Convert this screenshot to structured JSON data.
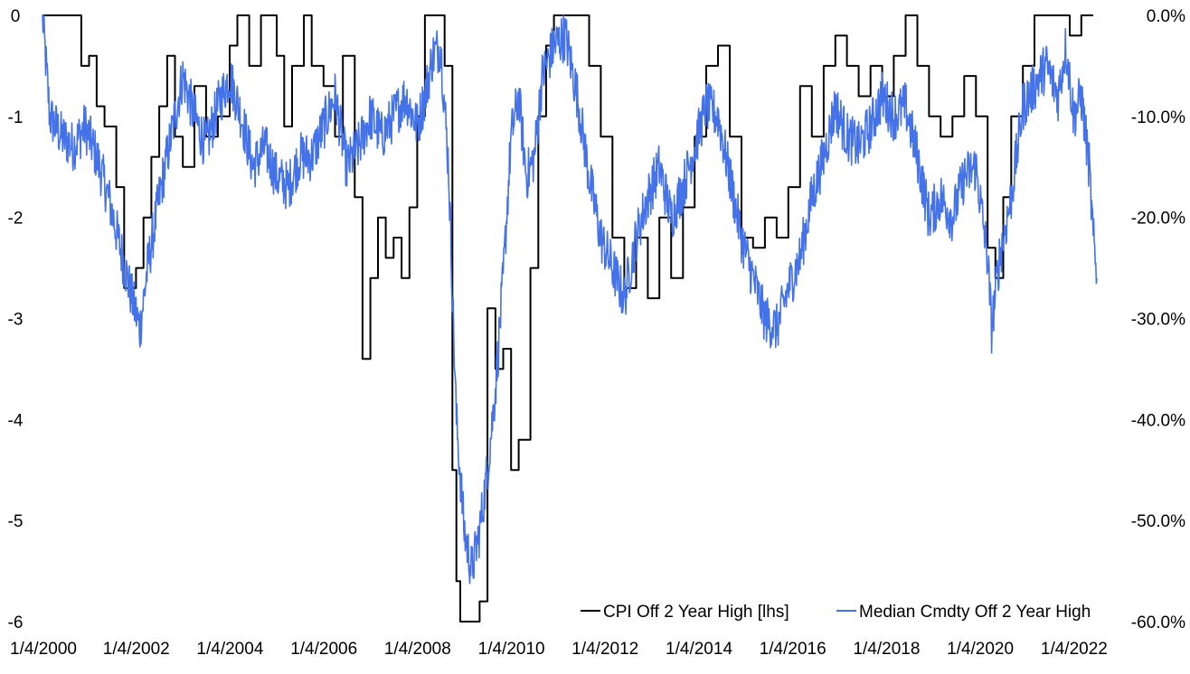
{
  "chart_data": {
    "type": "line",
    "title": "",
    "xlabel": "",
    "ylabel": "",
    "x_start": "2000-01-04",
    "x_end": "2022-06-30",
    "x_tick_labels": [
      "1/4/2000",
      "1/4/2002",
      "1/4/2004",
      "1/4/2006",
      "1/4/2008",
      "1/4/2010",
      "1/4/2012",
      "1/4/2014",
      "1/4/2016",
      "1/4/2018",
      "1/4/2020",
      "1/4/2022"
    ],
    "x_tick_dates": [
      "2000-01-04",
      "2002-01-04",
      "2004-01-04",
      "2006-01-04",
      "2008-01-04",
      "2010-01-04",
      "2012-01-04",
      "2014-01-04",
      "2016-01-04",
      "2018-01-04",
      "2020-01-04",
      "2022-01-04"
    ],
    "y_left": {
      "ylim": [
        -6,
        0
      ],
      "ticks": [
        0,
        -1,
        -2,
        -3,
        -4,
        -5,
        -6
      ],
      "tick_labels": [
        "0",
        "-1",
        "-2",
        "-3",
        "-4",
        "-5",
        "-6"
      ]
    },
    "y_right": {
      "ylim": [
        -60,
        0
      ],
      "ticks": [
        0,
        -10,
        -20,
        -30,
        -40,
        -50,
        -60
      ],
      "tick_labels": [
        "0.0%",
        "-10.0%",
        "-20.0%",
        "-30.0%",
        "-40.0%",
        "-50.0%",
        "-60.0%"
      ]
    },
    "grid": false,
    "legend": {
      "position": "bottom-right"
    },
    "series": [
      {
        "name": "CPI Off 2 Year High [lhs]",
        "axis": "left",
        "color": "#000000",
        "step": true,
        "points": [
          [
            "2000-01-04",
            0
          ],
          [
            "2000-10-01",
            0
          ],
          [
            "2000-11-01",
            -0.5
          ],
          [
            "2001-01-01",
            -0.4
          ],
          [
            "2001-03-01",
            -0.9
          ],
          [
            "2001-05-01",
            -1.1
          ],
          [
            "2001-08-01",
            -1.7
          ],
          [
            "2001-10-01",
            -2.7
          ],
          [
            "2002-01-01",
            -2.5
          ],
          [
            "2002-03-01",
            -2.0
          ],
          [
            "2002-05-01",
            -1.4
          ],
          [
            "2002-07-01",
            -0.9
          ],
          [
            "2002-09-01",
            -0.4
          ],
          [
            "2002-11-01",
            -1.2
          ],
          [
            "2003-01-01",
            -1.5
          ],
          [
            "2003-04-01",
            -0.7
          ],
          [
            "2003-07-01",
            -1.2
          ],
          [
            "2003-10-01",
            -1.0
          ],
          [
            "2004-01-01",
            -0.3
          ],
          [
            "2004-03-01",
            0
          ],
          [
            "2004-06-01",
            -0.5
          ],
          [
            "2004-09-01",
            0
          ],
          [
            "2005-01-01",
            -0.4
          ],
          [
            "2005-03-01",
            -1.1
          ],
          [
            "2005-05-01",
            -0.5
          ],
          [
            "2005-08-01",
            0
          ],
          [
            "2005-10-01",
            -0.5
          ],
          [
            "2006-01-01",
            -0.7
          ],
          [
            "2006-04-01",
            -1.2
          ],
          [
            "2006-06-01",
            -0.4
          ],
          [
            "2006-09-01",
            -1.8
          ],
          [
            "2006-11-01",
            -3.4
          ],
          [
            "2007-01-01",
            -2.6
          ],
          [
            "2007-03-01",
            -2.0
          ],
          [
            "2007-05-01",
            -2.4
          ],
          [
            "2007-07-01",
            -2.2
          ],
          [
            "2007-09-01",
            -2.6
          ],
          [
            "2007-11-01",
            -1.9
          ],
          [
            "2008-01-01",
            -1.0
          ],
          [
            "2008-03-01",
            0
          ],
          [
            "2008-06-01",
            0
          ],
          [
            "2008-08-01",
            -0.5
          ],
          [
            "2008-10-01",
            -4.5
          ],
          [
            "2008-11-01",
            -5.6
          ],
          [
            "2008-12-01",
            -6.0
          ],
          [
            "2009-04-01",
            -6.0
          ],
          [
            "2009-05-01",
            -5.8
          ],
          [
            "2009-07-01",
            -2.9
          ],
          [
            "2009-09-01",
            -3.5
          ],
          [
            "2009-11-01",
            -3.3
          ],
          [
            "2010-01-01",
            -4.5
          ],
          [
            "2010-03-01",
            -4.2
          ],
          [
            "2010-06-01",
            -2.5
          ],
          [
            "2010-08-01",
            -1.0
          ],
          [
            "2010-10-01",
            -0.3
          ],
          [
            "2010-12-01",
            0
          ],
          [
            "2011-06-01",
            0
          ],
          [
            "2011-09-01",
            -0.5
          ],
          [
            "2011-12-01",
            -1.2
          ],
          [
            "2012-03-01",
            -2.2
          ],
          [
            "2012-06-01",
            -2.7
          ],
          [
            "2012-09-01",
            -2.2
          ],
          [
            "2012-12-01",
            -2.8
          ],
          [
            "2013-03-01",
            -2.0
          ],
          [
            "2013-06-01",
            -2.6
          ],
          [
            "2013-09-01",
            -1.9
          ],
          [
            "2013-12-01",
            -1.2
          ],
          [
            "2014-03-01",
            -0.5
          ],
          [
            "2014-06-01",
            -0.3
          ],
          [
            "2014-09-01",
            -1.2
          ],
          [
            "2014-12-01",
            -2.2
          ],
          [
            "2015-03-01",
            -2.3
          ],
          [
            "2015-06-01",
            -2.0
          ],
          [
            "2015-09-01",
            -2.2
          ],
          [
            "2015-12-01",
            -1.7
          ],
          [
            "2016-03-01",
            -0.7
          ],
          [
            "2016-06-01",
            -1.2
          ],
          [
            "2016-09-01",
            -0.5
          ],
          [
            "2016-12-01",
            -0.2
          ],
          [
            "2017-03-01",
            -0.5
          ],
          [
            "2017-06-01",
            -0.8
          ],
          [
            "2017-09-01",
            -0.5
          ],
          [
            "2017-12-01",
            -0.8
          ],
          [
            "2018-03-01",
            -0.4
          ],
          [
            "2018-06-01",
            0
          ],
          [
            "2018-09-01",
            -0.5
          ],
          [
            "2018-12-01",
            -1.0
          ],
          [
            "2019-03-01",
            -1.2
          ],
          [
            "2019-06-01",
            -1.0
          ],
          [
            "2019-09-01",
            -0.6
          ],
          [
            "2019-12-01",
            -1.0
          ],
          [
            "2020-03-01",
            -2.3
          ],
          [
            "2020-05-01",
            -2.6
          ],
          [
            "2020-07-01",
            -1.8
          ],
          [
            "2020-09-01",
            -1.0
          ],
          [
            "2020-12-01",
            -0.5
          ],
          [
            "2021-03-01",
            0
          ],
          [
            "2021-06-01",
            0
          ],
          [
            "2021-09-01",
            0
          ],
          [
            "2021-12-01",
            -0.2
          ],
          [
            "2022-03-01",
            0
          ],
          [
            "2022-06-01",
            0
          ]
        ]
      },
      {
        "name": "Median Cmdty Off 2 Year High",
        "axis": "right",
        "color": "#4472e8",
        "step": false,
        "points": [
          [
            "2000-01-04",
            0
          ],
          [
            "2000-03-01",
            -10
          ],
          [
            "2000-06-01",
            -12
          ],
          [
            "2000-09-01",
            -13
          ],
          [
            "2000-12-01",
            -11
          ],
          [
            "2001-03-01",
            -14
          ],
          [
            "2001-06-01",
            -18
          ],
          [
            "2001-09-01",
            -23
          ],
          [
            "2001-12-01",
            -28
          ],
          [
            "2002-02-01",
            -31
          ],
          [
            "2002-04-01",
            -25
          ],
          [
            "2002-07-01",
            -18
          ],
          [
            "2002-10-01",
            -12
          ],
          [
            "2003-01-01",
            -6
          ],
          [
            "2003-04-01",
            -10
          ],
          [
            "2003-07-01",
            -13
          ],
          [
            "2003-10-01",
            -9
          ],
          [
            "2004-01-01",
            -6
          ],
          [
            "2004-04-01",
            -10
          ],
          [
            "2004-07-01",
            -15
          ],
          [
            "2004-10-01",
            -13
          ],
          [
            "2005-01-01",
            -16
          ],
          [
            "2005-04-01",
            -17
          ],
          [
            "2005-07-01",
            -14
          ],
          [
            "2005-10-01",
            -14
          ],
          [
            "2006-01-01",
            -11
          ],
          [
            "2006-04-01",
            -8
          ],
          [
            "2006-07-01",
            -15
          ],
          [
            "2006-10-01",
            -13
          ],
          [
            "2007-01-01",
            -10
          ],
          [
            "2007-04-01",
            -12
          ],
          [
            "2007-07-01",
            -10
          ],
          [
            "2007-10-01",
            -8
          ],
          [
            "2008-01-01",
            -11
          ],
          [
            "2008-03-01",
            -8
          ],
          [
            "2008-05-01",
            -4
          ],
          [
            "2008-07-01",
            -3
          ],
          [
            "2008-09-01",
            -15
          ],
          [
            "2008-11-01",
            -40
          ],
          [
            "2009-01-01",
            -51
          ],
          [
            "2009-03-01",
            -55
          ],
          [
            "2009-05-01",
            -51
          ],
          [
            "2009-07-01",
            -45
          ],
          [
            "2009-09-01",
            -37
          ],
          [
            "2009-11-01",
            -26
          ],
          [
            "2010-01-01",
            -12
          ],
          [
            "2010-03-01",
            -8
          ],
          [
            "2010-05-01",
            -16
          ],
          [
            "2010-07-01",
            -14
          ],
          [
            "2010-09-01",
            -6
          ],
          [
            "2010-12-01",
            -3
          ],
          [
            "2011-03-01",
            -2
          ],
          [
            "2011-06-01",
            -8
          ],
          [
            "2011-09-01",
            -16
          ],
          [
            "2011-12-01",
            -22
          ],
          [
            "2012-03-01",
            -25
          ],
          [
            "2012-06-01",
            -28
          ],
          [
            "2012-09-01",
            -22
          ],
          [
            "2012-12-01",
            -18
          ],
          [
            "2013-03-01",
            -15
          ],
          [
            "2013-06-01",
            -20
          ],
          [
            "2013-09-01",
            -17
          ],
          [
            "2013-12-01",
            -13
          ],
          [
            "2014-03-01",
            -9
          ],
          [
            "2014-06-01",
            -10
          ],
          [
            "2014-09-01",
            -16
          ],
          [
            "2014-12-01",
            -22
          ],
          [
            "2015-03-01",
            -26
          ],
          [
            "2015-06-01",
            -30
          ],
          [
            "2015-09-01",
            -31
          ],
          [
            "2015-12-01",
            -27
          ],
          [
            "2016-03-01",
            -24
          ],
          [
            "2016-06-01",
            -18
          ],
          [
            "2016-09-01",
            -14
          ],
          [
            "2016-12-01",
            -9
          ],
          [
            "2017-03-01",
            -12
          ],
          [
            "2017-06-01",
            -13
          ],
          [
            "2017-09-01",
            -11
          ],
          [
            "2017-12-01",
            -8
          ],
          [
            "2018-03-01",
            -10
          ],
          [
            "2018-06-01",
            -9
          ],
          [
            "2018-09-01",
            -14
          ],
          [
            "2018-12-01",
            -20
          ],
          [
            "2019-03-01",
            -18
          ],
          [
            "2019-06-01",
            -20
          ],
          [
            "2019-09-01",
            -16
          ],
          [
            "2019-12-01",
            -15
          ],
          [
            "2020-03-01",
            -24
          ],
          [
            "2020-04-01",
            -31
          ],
          [
            "2020-06-01",
            -24
          ],
          [
            "2020-09-01",
            -18
          ],
          [
            "2020-12-01",
            -9
          ],
          [
            "2021-03-01",
            -7
          ],
          [
            "2021-06-01",
            -5
          ],
          [
            "2021-09-01",
            -8
          ],
          [
            "2021-11-01",
            -3
          ],
          [
            "2022-01-01",
            -10
          ],
          [
            "2022-03-01",
            -8
          ],
          [
            "2022-05-01",
            -15
          ],
          [
            "2022-06-01",
            -22
          ],
          [
            "2022-06-30",
            -26
          ]
        ]
      }
    ]
  }
}
